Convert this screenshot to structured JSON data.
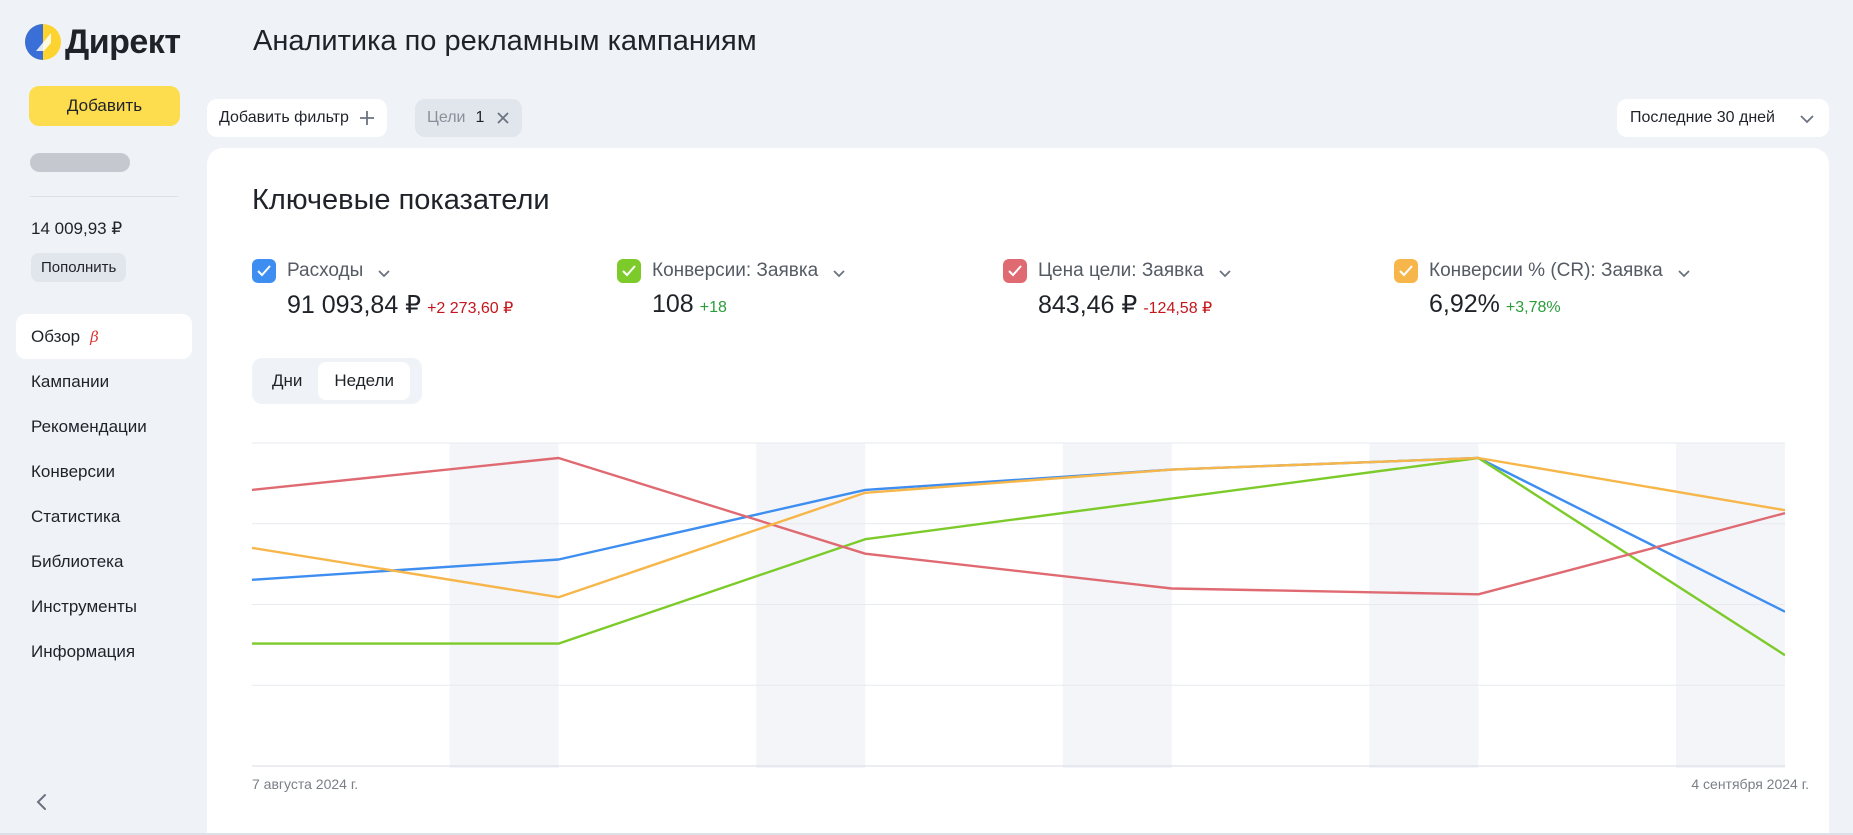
{
  "app": {
    "logo_text": "Директ"
  },
  "sidebar": {
    "add_label": "Добавить",
    "balance": "14 009,93 ₽",
    "topup_label": "Пополнить",
    "items": [
      {
        "label": "Обзор",
        "badge": "β",
        "active": true
      },
      {
        "label": "Кампании"
      },
      {
        "label": "Рекомендации"
      },
      {
        "label": "Конверсии"
      },
      {
        "label": "Статистика"
      },
      {
        "label": "Библиотека"
      },
      {
        "label": "Инструменты"
      },
      {
        "label": "Информация"
      }
    ],
    "collapse_icon": "chevron-left-icon"
  },
  "header": {
    "title": "Аналитика по рекламным кампаниям",
    "add_filter_label": "Добавить фильтр",
    "chip_label": "Цели",
    "chip_count": "1",
    "period_label": "Последние 30 дней"
  },
  "main": {
    "title": "Ключевые показатели",
    "metrics": [
      {
        "label": "Расходы",
        "value": "91 093,84 ₽",
        "delta": "+2 273,60 ₽",
        "color": "#3d8ef0"
      },
      {
        "label": "Конверсии: Заявка",
        "value": "108",
        "delta": "+18",
        "color": "#7ccb2a"
      },
      {
        "label": "Цена цели: Заявка",
        "value": "843,46 ₽",
        "delta": "-124,58 ₽",
        "color": "#e06a72"
      },
      {
        "label": "Конверсии % (CR): Заявка",
        "value": "6,92%",
        "delta": "+3,78%",
        "color": "#f7b64a"
      }
    ],
    "granularity": {
      "options": [
        "Дни",
        "Недели"
      ],
      "selected": "Недели"
    },
    "date_start": "7 августа 2024 г.",
    "date_end": "4 сентября 2024 г."
  },
  "chart_data": {
    "type": "line",
    "x": [
      "7 августа 2024 г.",
      "",
      "",
      "",
      "",
      "4 сентября 2024 г."
    ],
    "series": [
      {
        "name": "Расходы",
        "color": "#3d8ef0",
        "values": [
          0.58,
          0.65,
          0.89,
          0.96,
          1.0,
          0.47
        ]
      },
      {
        "name": "Конверсии: Заявка",
        "color": "#7ccb2a",
        "values": [
          0.36,
          0.36,
          0.72,
          0.86,
          1.0,
          0.32
        ]
      },
      {
        "name": "Цена цели: Заявка",
        "color": "#e06a72",
        "values": [
          0.89,
          1.0,
          0.67,
          0.55,
          0.53,
          0.81
        ]
      },
      {
        "name": "Конверсии % (CR): Заявка",
        "color": "#f7b64a",
        "values": [
          0.69,
          0.52,
          0.88,
          0.96,
          1.0,
          0.82
        ]
      }
    ],
    "grid": true,
    "legend": "top"
  }
}
